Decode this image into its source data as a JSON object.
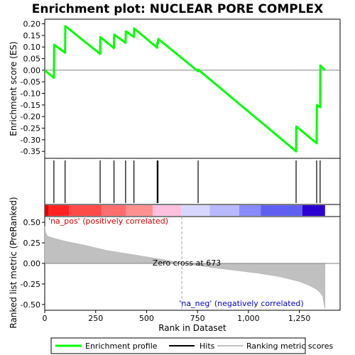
{
  "chart_data": {
    "type": "line",
    "title": "Enrichment plot: NUCLEAR PORE COMPLEX",
    "es_panel": {
      "ylabel": "Enrichment score (ES)",
      "ylim": [
        -0.38,
        0.22
      ],
      "yticks": [
        0.2,
        0.15,
        0.1,
        0.05,
        0.0,
        -0.05,
        -0.1,
        -0.15,
        -0.2,
        -0.25,
        -0.3,
        -0.35
      ],
      "ytick_labels": [
        "0.20",
        "0.15",
        "0.10",
        "0.05",
        "0.00",
        "-0.05",
        "-0.10",
        "-0.15",
        "-0.20",
        "-0.25",
        "-0.30",
        "-0.35"
      ],
      "series_color": "#00ff00",
      "x": [
        0,
        45,
        46,
        100,
        101,
        272,
        273,
        340,
        341,
        397,
        398,
        438,
        439,
        552,
        553,
        556,
        557,
        753,
        754,
        1234,
        1235,
        1335,
        1336,
        1352,
        1353,
        1376
      ],
      "y": [
        0.0,
        -0.033,
        0.11,
        0.075,
        0.19,
        0.07,
        0.143,
        0.095,
        0.153,
        0.118,
        0.168,
        0.143,
        0.18,
        0.097,
        0.12,
        0.115,
        0.135,
        -0.005,
        0.002,
        -0.35,
        -0.243,
        -0.315,
        -0.15,
        -0.16,
        0.02,
        0.0
      ]
    },
    "hits": {
      "positions": [
        45,
        100,
        272,
        340,
        397,
        438,
        552,
        556,
        753,
        1234,
        1335,
        1352
      ]
    },
    "rank_panel": {
      "ylabel": "Ranked list metric (PreRanked)",
      "xlabel": "Rank in Dataset",
      "xlim": [
        0,
        1450
      ],
      "ylim": [
        -0.57,
        0.57
      ],
      "xticks": [
        0,
        250,
        500,
        750,
        1000,
        1250
      ],
      "xtick_labels": [
        "0",
        "250",
        "500",
        "750",
        "1,000",
        "1,250"
      ],
      "yticks": [
        0.5,
        0.25,
        0.0,
        -0.25,
        -0.5
      ],
      "ytick_labels": [
        "0.50",
        "0.25",
        "0.00",
        "-0.25",
        "-0.50"
      ],
      "n_ranks": 1376,
      "metric_profile": {
        "x": [
          0,
          5,
          15,
          40,
          100,
          200,
          300,
          400,
          500,
          600,
          673,
          750,
          850,
          950,
          1050,
          1150,
          1250,
          1300,
          1330,
          1350,
          1365,
          1370,
          1376
        ],
        "y": [
          0.45,
          0.37,
          0.33,
          0.31,
          0.27,
          0.22,
          0.16,
          0.12,
          0.08,
          0.04,
          0.0,
          -0.025,
          -0.06,
          -0.09,
          -0.12,
          -0.16,
          -0.22,
          -0.27,
          -0.31,
          -0.35,
          -0.4,
          -0.48,
          -0.55
        ]
      },
      "zero_cross_rank": 673,
      "zero_cross_label": "Zero cross at 673",
      "pos_label": "'na_pos' (positively correlated)",
      "neg_label": "'na_neg' (negatively correlated)",
      "pos_color": "#cc0000",
      "neg_color": "#0000cc",
      "fill_color": "#c0c0c0"
    },
    "colorbar": {
      "segments": [
        {
          "from": 0,
          "to": 20,
          "color": "#e60000"
        },
        {
          "from": 20,
          "to": 120,
          "color": "#ff2222"
        },
        {
          "from": 120,
          "to": 280,
          "color": "#ff4a4a"
        },
        {
          "from": 280,
          "to": 400,
          "color": "#ff6e6e"
        },
        {
          "from": 400,
          "to": 530,
          "color": "#ff9090"
        },
        {
          "from": 530,
          "to": 670,
          "color": "#ffc0e0"
        },
        {
          "from": 670,
          "to": 810,
          "color": "#d8d8ff"
        },
        {
          "from": 810,
          "to": 955,
          "color": "#b8b8ff"
        },
        {
          "from": 955,
          "to": 1060,
          "color": "#8a8aff"
        },
        {
          "from": 1060,
          "to": 1265,
          "color": "#6060f0"
        },
        {
          "from": 1265,
          "to": 1376,
          "color": "#2a00d0"
        }
      ]
    },
    "legend": {
      "placement": "bottom",
      "items": [
        {
          "label": "Enrichment profile",
          "color": "#00ff00"
        },
        {
          "label": "Hits",
          "color": "#000000"
        },
        {
          "label": "Ranking metric scores",
          "color": "#c0c0c0"
        }
      ]
    }
  }
}
